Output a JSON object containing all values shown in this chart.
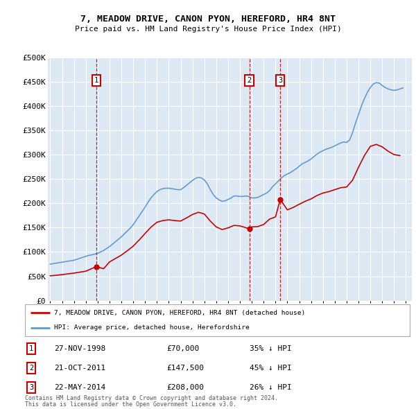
{
  "title": "7, MEADOW DRIVE, CANON PYON, HEREFORD, HR4 8NT",
  "subtitle": "Price paid vs. HM Land Registry's House Price Index (HPI)",
  "ylim": [
    0,
    500000
  ],
  "yticks": [
    0,
    50000,
    100000,
    150000,
    200000,
    250000,
    300000,
    350000,
    400000,
    450000,
    500000
  ],
  "ytick_labels": [
    "£0",
    "£50K",
    "£100K",
    "£150K",
    "£200K",
    "£250K",
    "£300K",
    "£350K",
    "£400K",
    "£450K",
    "£500K"
  ],
  "xlim_start": 1994.8,
  "xlim_end": 2025.5,
  "sale_dates": [
    1998.9,
    2011.8,
    2014.4
  ],
  "sale_prices": [
    70000,
    147500,
    208000
  ],
  "sale_labels": [
    "1",
    "2",
    "3"
  ],
  "sale_date_strings": [
    "27-NOV-1998",
    "21-OCT-2011",
    "22-MAY-2014"
  ],
  "sale_price_strings": [
    "£70,000",
    "£147,500",
    "£208,000"
  ],
  "sale_hpi_strings": [
    "35% ↓ HPI",
    "45% ↓ HPI",
    "26% ↓ HPI"
  ],
  "bg_color": "#dce9f5",
  "grid_color": "#ffffff",
  "red_line_color": "#cc0000",
  "blue_line_color": "#6699cc",
  "dashed_line_color": "#cc0000",
  "legend_label_red": "7, MEADOW DRIVE, CANON PYON, HEREFORD, HR4 8NT (detached house)",
  "legend_label_blue": "HPI: Average price, detached house, Herefordshire",
  "footer1": "Contains HM Land Registry data © Crown copyright and database right 2024.",
  "footer2": "This data is licensed under the Open Government Licence v3.0.",
  "hpi_x": [
    1995.0,
    1995.25,
    1995.5,
    1995.75,
    1996.0,
    1996.25,
    1996.5,
    1996.75,
    1997.0,
    1997.25,
    1997.5,
    1997.75,
    1998.0,
    1998.25,
    1998.5,
    1998.75,
    1999.0,
    1999.25,
    1999.5,
    1999.75,
    2000.0,
    2000.25,
    2000.5,
    2000.75,
    2001.0,
    2001.25,
    2001.5,
    2001.75,
    2002.0,
    2002.25,
    2002.5,
    2002.75,
    2003.0,
    2003.25,
    2003.5,
    2003.75,
    2004.0,
    2004.25,
    2004.5,
    2004.75,
    2005.0,
    2005.25,
    2005.5,
    2005.75,
    2006.0,
    2006.25,
    2006.5,
    2006.75,
    2007.0,
    2007.25,
    2007.5,
    2007.75,
    2008.0,
    2008.25,
    2008.5,
    2008.75,
    2009.0,
    2009.25,
    2009.5,
    2009.75,
    2010.0,
    2010.25,
    2010.5,
    2010.75,
    2011.0,
    2011.25,
    2011.5,
    2011.75,
    2012.0,
    2012.25,
    2012.5,
    2012.75,
    2013.0,
    2013.25,
    2013.5,
    2013.75,
    2014.0,
    2014.25,
    2014.5,
    2014.75,
    2015.0,
    2015.25,
    2015.5,
    2015.75,
    2016.0,
    2016.25,
    2016.5,
    2016.75,
    2017.0,
    2017.25,
    2017.5,
    2017.75,
    2018.0,
    2018.25,
    2018.5,
    2018.75,
    2019.0,
    2019.25,
    2019.5,
    2019.75,
    2020.0,
    2020.25,
    2020.5,
    2020.75,
    2021.0,
    2021.25,
    2021.5,
    2021.75,
    2022.0,
    2022.25,
    2022.5,
    2022.75,
    2023.0,
    2023.25,
    2023.5,
    2023.75,
    2024.0,
    2024.25,
    2024.5,
    2024.75
  ],
  "hpi_y": [
    75000,
    76000,
    77000,
    78000,
    79000,
    80000,
    81000,
    82000,
    83000,
    85000,
    87000,
    89000,
    91000,
    93000,
    94000,
    95500,
    97000,
    100000,
    103000,
    107000,
    111000,
    116000,
    121000,
    126000,
    131000,
    137000,
    143000,
    149000,
    156000,
    165000,
    174000,
    183000,
    192000,
    202000,
    211000,
    218000,
    224000,
    228000,
    230000,
    231000,
    231000,
    230000,
    229000,
    228000,
    228000,
    232000,
    237000,
    242000,
    247000,
    251000,
    253000,
    252000,
    248000,
    240000,
    228000,
    218000,
    211000,
    207000,
    204000,
    205000,
    208000,
    211000,
    215000,
    215000,
    214000,
    214000,
    215000,
    214000,
    211000,
    211000,
    212000,
    215000,
    218000,
    221000,
    226000,
    234000,
    240000,
    246000,
    252000,
    257000,
    260000,
    263000,
    267000,
    271000,
    276000,
    281000,
    284000,
    287000,
    291000,
    296000,
    301000,
    305000,
    308000,
    311000,
    313000,
    315000,
    318000,
    321000,
    324000,
    326000,
    325000,
    330000,
    345000,
    365000,
    382000,
    400000,
    415000,
    428000,
    438000,
    445000,
    448000,
    447000,
    442000,
    438000,
    435000,
    433000,
    432000,
    433000,
    435000,
    437000
  ],
  "red_x": [
    1995.0,
    1995.5,
    1996.0,
    1996.5,
    1997.0,
    1997.5,
    1998.0,
    1998.9,
    1999.5,
    2000.0,
    2000.5,
    2001.0,
    2001.5,
    2002.0,
    2002.5,
    2003.0,
    2003.5,
    2004.0,
    2004.5,
    2005.0,
    2005.5,
    2006.0,
    2006.5,
    2007.0,
    2007.5,
    2008.0,
    2008.5,
    2009.0,
    2009.5,
    2010.0,
    2010.5,
    2011.0,
    2011.8,
    2012.0,
    2012.5,
    2013.0,
    2013.5,
    2014.0,
    2014.4,
    2015.0,
    2015.5,
    2016.0,
    2016.5,
    2017.0,
    2017.5,
    2018.0,
    2018.5,
    2019.0,
    2019.5,
    2020.0,
    2020.5,
    2021.0,
    2021.5,
    2022.0,
    2022.5,
    2023.0,
    2023.5,
    2024.0,
    2024.5
  ],
  "red_y": [
    51000,
    52000,
    53500,
    55000,
    56500,
    58500,
    60500,
    70000,
    65500,
    79500,
    86500,
    93500,
    102500,
    112000,
    124500,
    138000,
    151000,
    161000,
    164500,
    166000,
    164500,
    163500,
    170000,
    177000,
    181500,
    178000,
    163500,
    151500,
    146000,
    149500,
    154500,
    153500,
    147500,
    151500,
    152000,
    156500,
    167500,
    172000,
    208000,
    186500,
    191500,
    198000,
    204000,
    209000,
    216000,
    221000,
    224000,
    228000,
    232000,
    233500,
    247500,
    274000,
    298000,
    317000,
    321000,
    316000,
    307000,
    300000,
    298000
  ]
}
